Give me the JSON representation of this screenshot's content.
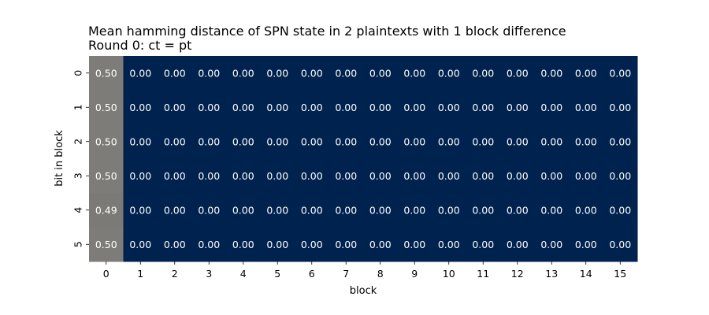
{
  "chart_data": {
    "type": "heatmap",
    "title": "Mean hamming distance of SPN state in 2 plaintexts with 1 block difference",
    "subtitle": "Round 0: ct = pt",
    "xlabel": "block",
    "ylabel": "bit in block",
    "x_categories": [
      "0",
      "1",
      "2",
      "3",
      "4",
      "5",
      "6",
      "7",
      "8",
      "9",
      "10",
      "11",
      "12",
      "13",
      "14",
      "15"
    ],
    "y_categories": [
      "0",
      "1",
      "2",
      "3",
      "4",
      "5"
    ],
    "values": [
      [
        0.5,
        0.0,
        0.0,
        0.0,
        0.0,
        0.0,
        0.0,
        0.0,
        0.0,
        0.0,
        0.0,
        0.0,
        0.0,
        0.0,
        0.0,
        0.0
      ],
      [
        0.5,
        0.0,
        0.0,
        0.0,
        0.0,
        0.0,
        0.0,
        0.0,
        0.0,
        0.0,
        0.0,
        0.0,
        0.0,
        0.0,
        0.0,
        0.0
      ],
      [
        0.5,
        0.0,
        0.0,
        0.0,
        0.0,
        0.0,
        0.0,
        0.0,
        0.0,
        0.0,
        0.0,
        0.0,
        0.0,
        0.0,
        0.0,
        0.0
      ],
      [
        0.5,
        0.0,
        0.0,
        0.0,
        0.0,
        0.0,
        0.0,
        0.0,
        0.0,
        0.0,
        0.0,
        0.0,
        0.0,
        0.0,
        0.0,
        0.0
      ],
      [
        0.49,
        0.0,
        0.0,
        0.0,
        0.0,
        0.0,
        0.0,
        0.0,
        0.0,
        0.0,
        0.0,
        0.0,
        0.0,
        0.0,
        0.0,
        0.0
      ],
      [
        0.5,
        0.0,
        0.0,
        0.0,
        0.0,
        0.0,
        0.0,
        0.0,
        0.0,
        0.0,
        0.0,
        0.0,
        0.0,
        0.0,
        0.0,
        0.0
      ]
    ],
    "value_format": "0.00",
    "color_scale": {
      "low_color": "#00224e",
      "high_color": "#7d7c78",
      "vmin": 0.0,
      "vmax": 0.5
    },
    "colorbar": false,
    "grid": false
  }
}
